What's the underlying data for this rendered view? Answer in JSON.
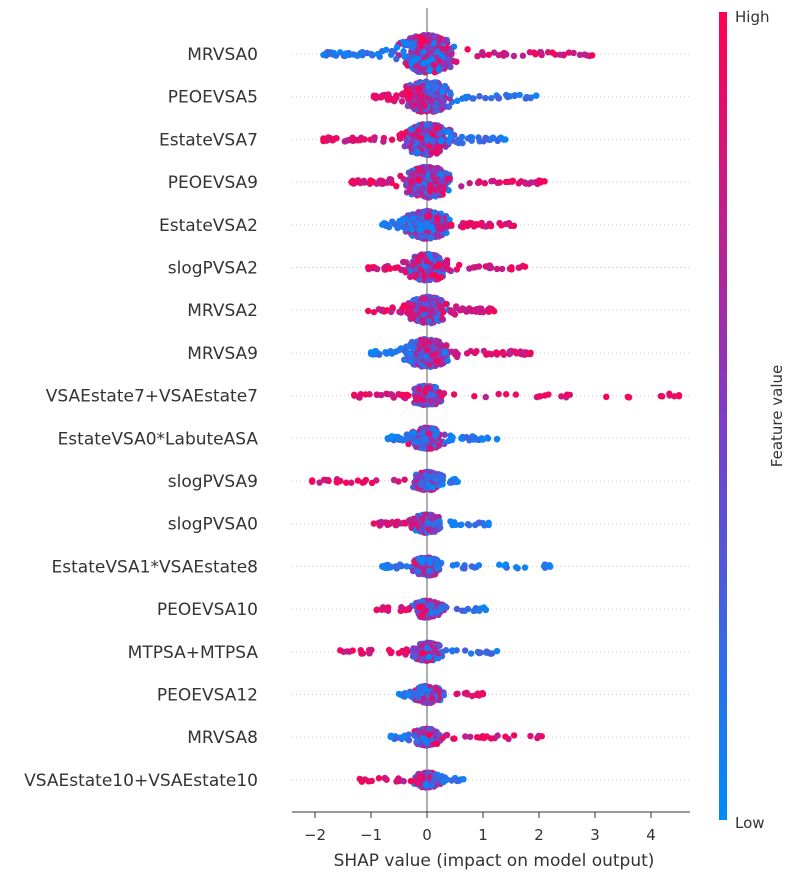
{
  "chart_data": {
    "type": "scatter",
    "subtype": "shap-beeswarm",
    "title": "",
    "xlabel": "SHAP value (impact on model output)",
    "ylabel": "",
    "xlim": [
      -2.5,
      4.7
    ],
    "xticks": [
      -2,
      -1,
      0,
      1,
      2,
      3,
      4
    ],
    "xtick_labels": [
      "−2",
      "−1",
      "0",
      "1",
      "2",
      "3",
      "4"
    ],
    "grid": false,
    "colorbar": {
      "title": "Feature value",
      "high_label": "High",
      "low_label": "Low",
      "low_color": "#008bfb",
      "mid_color": "#7f3cc4",
      "high_color": "#ff0052"
    },
    "features": [
      {
        "name": "MRVSA0",
        "min": -1.85,
        "max": 2.95,
        "density": 1.0,
        "left_high": false,
        "right_high": true,
        "outliers": []
      },
      {
        "name": "PEOEVSA5",
        "min": -0.95,
        "max": 1.95,
        "density": 0.75,
        "left_high": true,
        "right_high": false,
        "outliers": [
          1.95
        ]
      },
      {
        "name": "EstateVSA7",
        "min": -1.85,
        "max": 1.4,
        "density": 0.75,
        "left_high": true,
        "right_high": false,
        "outliers": []
      },
      {
        "name": "PEOEVSA9",
        "min": -1.35,
        "max": 2.1,
        "density": 0.75,
        "left_high": true,
        "right_high": true,
        "outliers": []
      },
      {
        "name": "EstateVSA2",
        "min": -0.8,
        "max": 1.55,
        "density": 0.65,
        "left_high": false,
        "right_high": true,
        "outliers": []
      },
      {
        "name": "slogPVSA2",
        "min": -1.05,
        "max": 1.75,
        "density": 0.6,
        "left_high": true,
        "right_high": true,
        "outliers": []
      },
      {
        "name": "MRVSA2",
        "min": -1.05,
        "max": 1.2,
        "density": 0.6,
        "left_high": true,
        "right_high": true,
        "outliers": []
      },
      {
        "name": "MRVSA9",
        "min": -1.0,
        "max": 1.85,
        "density": 0.65,
        "left_high": false,
        "right_high": true,
        "outliers": []
      },
      {
        "name": "VSAEstate7+VSAEstate7",
        "min": -1.3,
        "max": 4.5,
        "density": 0.35,
        "left_high": true,
        "right_high": true,
        "outliers": [
          2.0,
          2.5,
          4.2,
          4.5
        ]
      },
      {
        "name": "EstateVSA0*LabuteASA",
        "min": -0.7,
        "max": 1.25,
        "density": 0.4,
        "left_high": false,
        "right_high": false,
        "outliers": [
          1.0,
          1.25
        ]
      },
      {
        "name": "slogPVSA9",
        "min": -2.05,
        "max": 0.55,
        "density": 0.3,
        "left_high": true,
        "right_high": false,
        "outliers": [
          -2.05
        ]
      },
      {
        "name": "slogPVSA0",
        "min": -0.95,
        "max": 1.1,
        "density": 0.3,
        "left_high": true,
        "right_high": false,
        "outliers": [
          1.1
        ]
      },
      {
        "name": "EstateVSA1*VSAEstate8",
        "min": -0.8,
        "max": 2.2,
        "density": 0.3,
        "left_high": false,
        "right_high": false,
        "outliers": [
          1.75,
          2.2
        ]
      },
      {
        "name": "PEOEVSA10",
        "min": -0.9,
        "max": 1.05,
        "density": 0.25,
        "left_high": true,
        "right_high": false,
        "outliers": [
          1.05
        ]
      },
      {
        "name": "MTPSA+MTPSA",
        "min": -1.55,
        "max": 1.25,
        "density": 0.3,
        "left_high": true,
        "right_high": false,
        "outliers": []
      },
      {
        "name": "PEOEVSA12",
        "min": -0.5,
        "max": 1.0,
        "density": 0.25,
        "left_high": false,
        "right_high": true,
        "outliers": []
      },
      {
        "name": "MRVSA8",
        "min": -0.65,
        "max": 2.05,
        "density": 0.25,
        "left_high": false,
        "right_high": true,
        "outliers": [
          0.95
        ]
      },
      {
        "name": "VSAEstate10+VSAEstate10",
        "min": -1.2,
        "max": 0.65,
        "density": 0.2,
        "left_high": true,
        "right_high": false,
        "outliers": [
          0.65
        ]
      }
    ]
  }
}
